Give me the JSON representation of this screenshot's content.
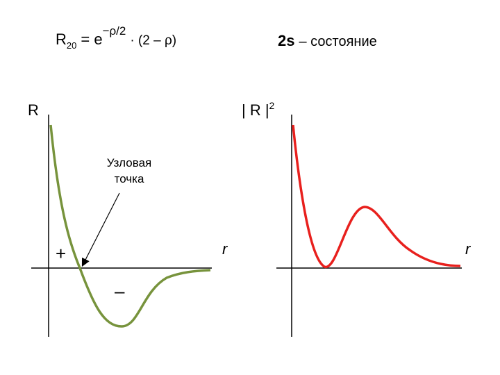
{
  "formula": {
    "lhs": "R",
    "lhs_sub": "20",
    "eq": "= e",
    "exp": "−ρ/2",
    "rest": "· (2 – ρ)"
  },
  "title": {
    "bold": "2s",
    "rest": "– состояние"
  },
  "left_plot": {
    "y_label": "R",
    "x_label": "r",
    "annotation": [
      "Узловая",
      "точка"
    ],
    "plus": "+",
    "minus": "–"
  },
  "right_plot": {
    "y_label": "| R |",
    "y_label_sup": "2",
    "x_label": "r"
  }
}
